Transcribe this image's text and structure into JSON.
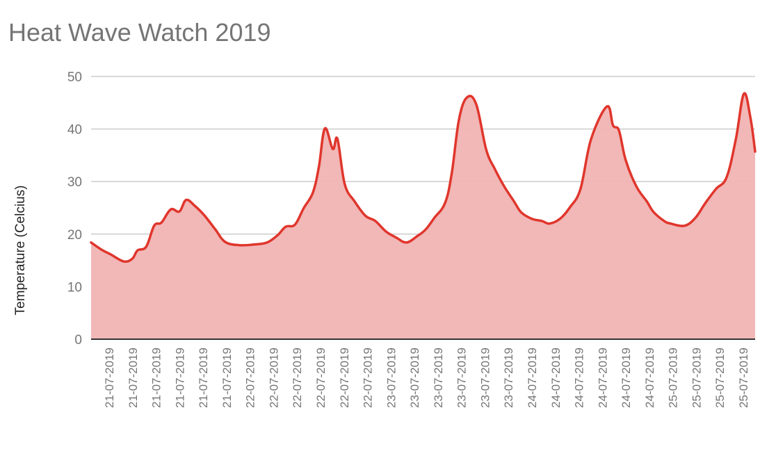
{
  "title": "Heat Wave Watch 2019",
  "colors": {
    "line": "#e0362c",
    "fill": "#f1b3b3",
    "grid": "#cccccc",
    "baseline": "#333333",
    "text": "#757575"
  },
  "chart_data": {
    "type": "area",
    "title": "Heat Wave Watch 2019",
    "xlabel": "",
    "ylabel": "Temperature (Celcius)",
    "ylim": [
      0,
      50
    ],
    "yticks": [
      0,
      10,
      20,
      30,
      40,
      50
    ],
    "grid": true,
    "legend": "none",
    "categories": [
      "21-07-2019",
      "21-07-2019",
      "21-07-2019",
      "21-07-2019",
      "21-07-2019",
      "21-07-2019",
      "22-07-2019",
      "22-07-2019",
      "22-07-2019",
      "22-07-2019",
      "22-07-2019",
      "22-07-2019",
      "23-07-2019",
      "23-07-2019",
      "23-07-2019",
      "23-07-2019",
      "23-07-2019",
      "23-07-2019",
      "24-07-2019",
      "24-07-2019",
      "24-07-2019",
      "24-07-2019",
      "24-07-2019",
      "24-07-2019",
      "25-07-2019",
      "25-07-2019",
      "25-07-2019",
      "25-07-2019"
    ],
    "series": [
      {
        "name": "Temperature",
        "x_frac": [
          0,
          0.015,
          0.03,
          0.049,
          0.062,
          0.07,
          0.083,
          0.095,
          0.106,
          0.12,
          0.133,
          0.143,
          0.156,
          0.171,
          0.187,
          0.202,
          0.223,
          0.244,
          0.265,
          0.281,
          0.293,
          0.307,
          0.32,
          0.334,
          0.343,
          0.352,
          0.364,
          0.371,
          0.382,
          0.397,
          0.413,
          0.428,
          0.444,
          0.46,
          0.475,
          0.491,
          0.504,
          0.517,
          0.533,
          0.543,
          0.554,
          0.566,
          0.58,
          0.595,
          0.608,
          0.622,
          0.637,
          0.648,
          0.664,
          0.679,
          0.69,
          0.706,
          0.721,
          0.737,
          0.753,
          0.777,
          0.786,
          0.795,
          0.805,
          0.821,
          0.837,
          0.847,
          0.863,
          0.873,
          0.894,
          0.91,
          0.925,
          0.941,
          0.957,
          0.971,
          0.983,
          0.993,
          1.0
        ],
        "values": [
          18.4,
          17.1,
          16.1,
          14.8,
          15.3,
          16.9,
          17.6,
          21.6,
          22.2,
          24.7,
          24.3,
          26.5,
          25.4,
          23.5,
          20.9,
          18.5,
          17.9,
          18.0,
          18.4,
          19.8,
          21.4,
          21.8,
          24.9,
          27.9,
          32.8,
          40.1,
          36.2,
          38.1,
          29.5,
          26.2,
          23.5,
          22.5,
          20.5,
          19.3,
          18.4,
          19.6,
          20.9,
          23.1,
          25.9,
          31.5,
          41.8,
          46.0,
          44.7,
          36.1,
          32.4,
          29.1,
          26.2,
          24.1,
          22.9,
          22.5,
          22.0,
          22.9,
          25.1,
          28.6,
          38.1,
          44.3,
          40.7,
          39.7,
          34.1,
          29.1,
          26.2,
          24.2,
          22.5,
          22.0,
          21.6,
          23.1,
          25.9,
          28.6,
          30.8,
          38.1,
          46.7,
          42.1,
          35.7
        ]
      }
    ]
  }
}
